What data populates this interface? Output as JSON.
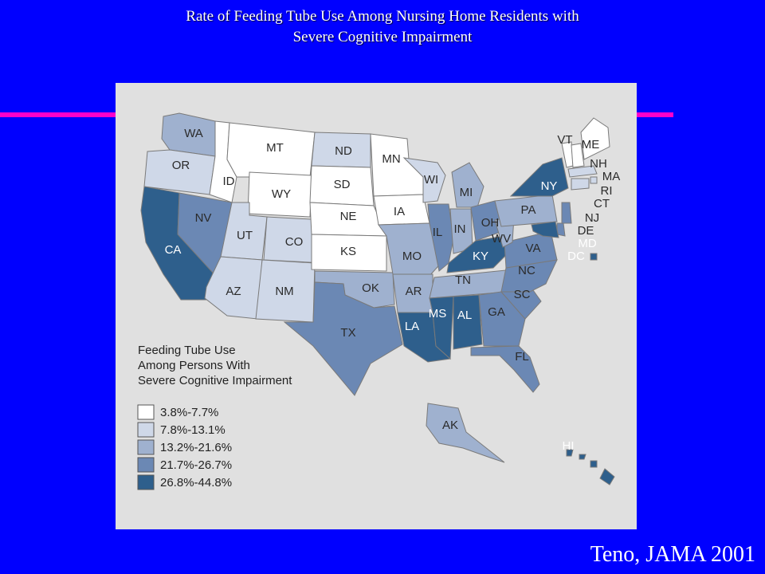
{
  "title": {
    "line1": "Rate of Feeding Tube Use Among Nursing Home Residents with",
    "line2": "Severe Cognitive Impairment"
  },
  "citation": "Teno, JAMA 2001",
  "colors": {
    "background": "#0000ff",
    "accent_line": "#ff00cc",
    "panel": "#e0e0e0",
    "class_1": "#ffffff",
    "class_2": "#cfd8e8",
    "class_3": "#9fb1cf",
    "class_4": "#6b88b4",
    "class_5": "#2e5f8c"
  },
  "map": {
    "legend": {
      "title_lines": [
        "Feeding Tube Use",
        "Among Persons With",
        "Severe Cognitive Impairment"
      ],
      "classes": [
        {
          "label": "3.8%-7.7%",
          "color_key": "class_1"
        },
        {
          "label": "7.8%-13.1%",
          "color_key": "class_2"
        },
        {
          "label": "13.2%-21.6%",
          "color_key": "class_3"
        },
        {
          "label": "21.7%-26.7%",
          "color_key": "class_4"
        },
        {
          "label": "26.8%-44.8%",
          "color_key": "class_5"
        }
      ]
    },
    "states": [
      {
        "abbr": "WA",
        "class": 3
      },
      {
        "abbr": "OR",
        "class": 2
      },
      {
        "abbr": "CA",
        "class": 5
      },
      {
        "abbr": "NV",
        "class": 4
      },
      {
        "abbr": "ID",
        "class": 1
      },
      {
        "abbr": "MT",
        "class": 1
      },
      {
        "abbr": "WY",
        "class": 1
      },
      {
        "abbr": "UT",
        "class": 2
      },
      {
        "abbr": "CO",
        "class": 2
      },
      {
        "abbr": "AZ",
        "class": 2
      },
      {
        "abbr": "NM",
        "class": 2
      },
      {
        "abbr": "ND",
        "class": 2
      },
      {
        "abbr": "SD",
        "class": 1
      },
      {
        "abbr": "NE",
        "class": 1
      },
      {
        "abbr": "KS",
        "class": 1
      },
      {
        "abbr": "OK",
        "class": 3
      },
      {
        "abbr": "TX",
        "class": 4
      },
      {
        "abbr": "MN",
        "class": 1
      },
      {
        "abbr": "IA",
        "class": 1
      },
      {
        "abbr": "MO",
        "class": 3
      },
      {
        "abbr": "AR",
        "class": 3
      },
      {
        "abbr": "LA",
        "class": 5
      },
      {
        "abbr": "WI",
        "class": 2
      },
      {
        "abbr": "IL",
        "class": 4
      },
      {
        "abbr": "MI",
        "class": 3
      },
      {
        "abbr": "IN",
        "class": 3
      },
      {
        "abbr": "OH",
        "class": 4
      },
      {
        "abbr": "KY",
        "class": 5
      },
      {
        "abbr": "TN",
        "class": 3
      },
      {
        "abbr": "MS",
        "class": 5
      },
      {
        "abbr": "AL",
        "class": 5
      },
      {
        "abbr": "GA",
        "class": 4
      },
      {
        "abbr": "FL",
        "class": 4
      },
      {
        "abbr": "SC",
        "class": 4
      },
      {
        "abbr": "NC",
        "class": 4
      },
      {
        "abbr": "VA",
        "class": 4
      },
      {
        "abbr": "WV",
        "class": 3
      },
      {
        "abbr": "PA",
        "class": 3
      },
      {
        "abbr": "NY",
        "class": 5
      },
      {
        "abbr": "VT",
        "class": 1
      },
      {
        "abbr": "NH",
        "class": 1
      },
      {
        "abbr": "ME",
        "class": 1
      },
      {
        "abbr": "MA",
        "class": 2
      },
      {
        "abbr": "RI",
        "class": 2
      },
      {
        "abbr": "CT",
        "class": 2
      },
      {
        "abbr": "NJ",
        "class": 4
      },
      {
        "abbr": "DE",
        "class": 4
      },
      {
        "abbr": "MD",
        "class": 5
      },
      {
        "abbr": "DC",
        "class": 5
      },
      {
        "abbr": "AK",
        "class": 3
      },
      {
        "abbr": "HI",
        "class": 5
      }
    ]
  }
}
